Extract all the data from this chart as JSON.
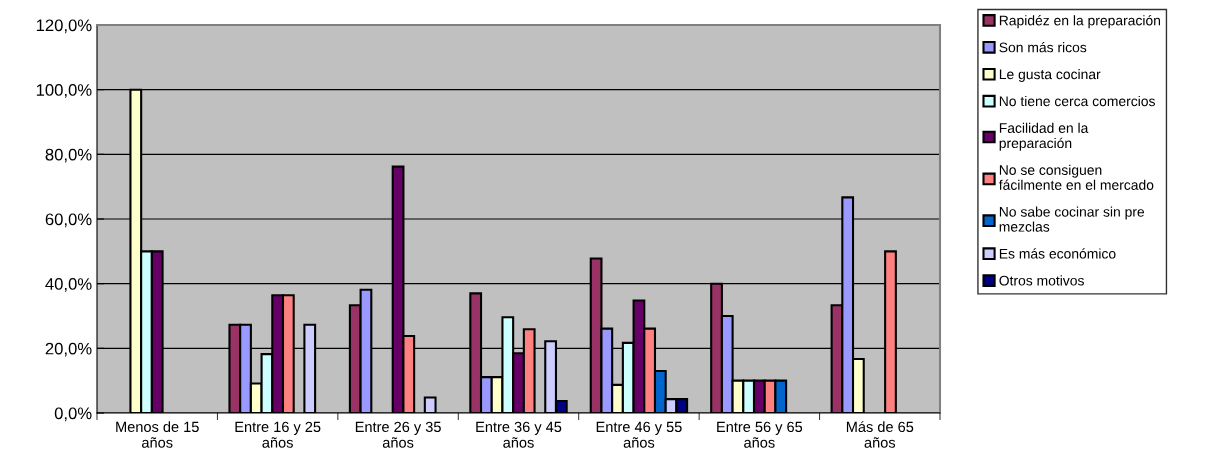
{
  "chart_data": {
    "type": "bar",
    "categories": [
      "Menos de 15 años",
      "Entre 16 y 25 años",
      "Entre 26 y 35 años",
      "Entre 36 y 45 años",
      "Entre 46 y 55 años",
      "Entre 56 y 65 años",
      "Más de 65 años"
    ],
    "series": [
      {
        "name": "Rapidéz en la preparación",
        "color": "#993366",
        "values": [
          null,
          27.3,
          33.3,
          37.0,
          47.8,
          40.0,
          33.3
        ]
      },
      {
        "name": "Son más ricos",
        "color": "#9999ff",
        "values": [
          null,
          27.3,
          38.1,
          11.1,
          26.1,
          30.0,
          66.7
        ]
      },
      {
        "name": "Le gusta cocinar",
        "color": "#ffffcc",
        "values": [
          100.0,
          9.1,
          null,
          11.1,
          8.7,
          10.0,
          16.7
        ]
      },
      {
        "name": "No tiene cerca comercios",
        "color": "#ccffff",
        "values": [
          50.0,
          18.2,
          null,
          29.6,
          21.7,
          10.0,
          null
        ]
      },
      {
        "name": "Facilidad en la preparación",
        "color": "#660066",
        "values": [
          50.0,
          36.4,
          76.2,
          18.5,
          34.8,
          10.0,
          null
        ]
      },
      {
        "name": "No se consiguen fácilmente en el mercado",
        "color": "#ff8080",
        "values": [
          null,
          36.4,
          23.8,
          25.9,
          26.1,
          10.0,
          50.0
        ]
      },
      {
        "name": "No sabe cocinar sin pre mezclas",
        "color": "#0066cc",
        "values": [
          null,
          null,
          null,
          null,
          13.0,
          10.0,
          null
        ]
      },
      {
        "name": "Es más económico",
        "color": "#ccccff",
        "values": [
          null,
          27.3,
          4.8,
          22.2,
          4.3,
          null,
          null
        ]
      },
      {
        "name": "Otros motivos",
        "color": "#000080",
        "values": [
          null,
          null,
          null,
          3.7,
          4.3,
          null,
          null
        ]
      }
    ],
    "ylim": [
      0,
      120
    ],
    "yticks": [
      {
        "value": 0,
        "label": "0,0%"
      },
      {
        "value": 20,
        "label": "20,0%"
      },
      {
        "value": 40,
        "label": "40,0%"
      },
      {
        "value": 60,
        "label": "60,0%"
      },
      {
        "value": 80,
        "label": "80,0%"
      },
      {
        "value": 100,
        "label": "100,0%"
      },
      {
        "value": 120,
        "label": "120,0%"
      }
    ],
    "grid": "y",
    "legend": "right"
  }
}
